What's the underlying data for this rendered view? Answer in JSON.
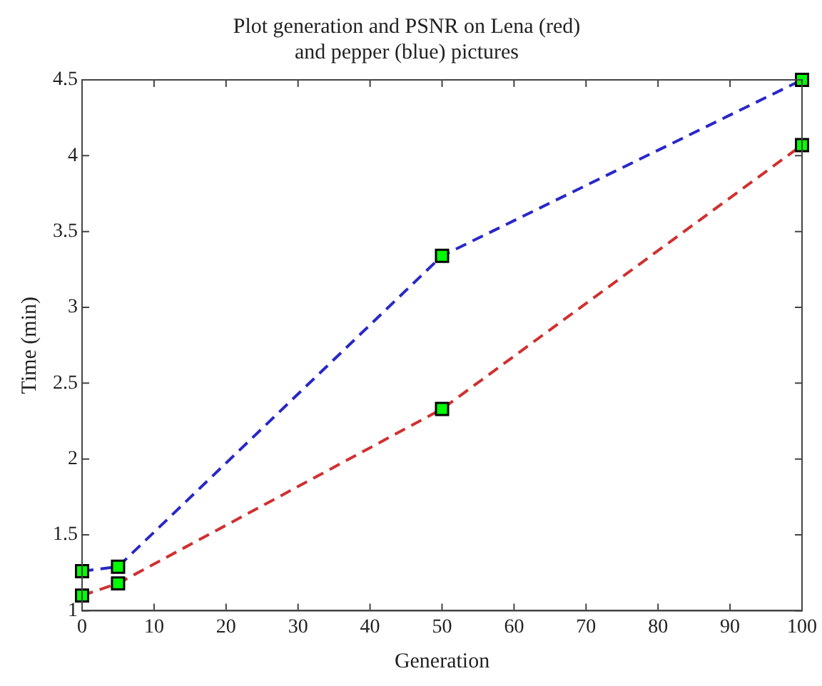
{
  "chart_data": {
    "type": "line",
    "title": "Plot generation and PSNR on Lena (red)\nand pepper (blue) pictures",
    "xlabel": "Generation",
    "ylabel": "Time (min)",
    "x": [
      0,
      5,
      50,
      100
    ],
    "series": [
      {
        "color": "#2828c8",
        "values": [
          1.26,
          1.29,
          3.34,
          4.5
        ]
      },
      {
        "color": "#d03030",
        "values": [
          1.1,
          1.18,
          2.33,
          4.07
        ]
      }
    ],
    "xlim": [
      0,
      100
    ],
    "xticks": [
      0,
      10,
      20,
      30,
      40,
      50,
      60,
      70,
      80,
      90,
      100
    ],
    "ylim": [
      1,
      4.5
    ],
    "yticks": [
      1,
      1.5,
      2,
      2.5,
      3,
      3.5,
      4,
      4.5
    ],
    "grid": false,
    "legend": false,
    "marker": "square",
    "line_style": "dashed"
  }
}
